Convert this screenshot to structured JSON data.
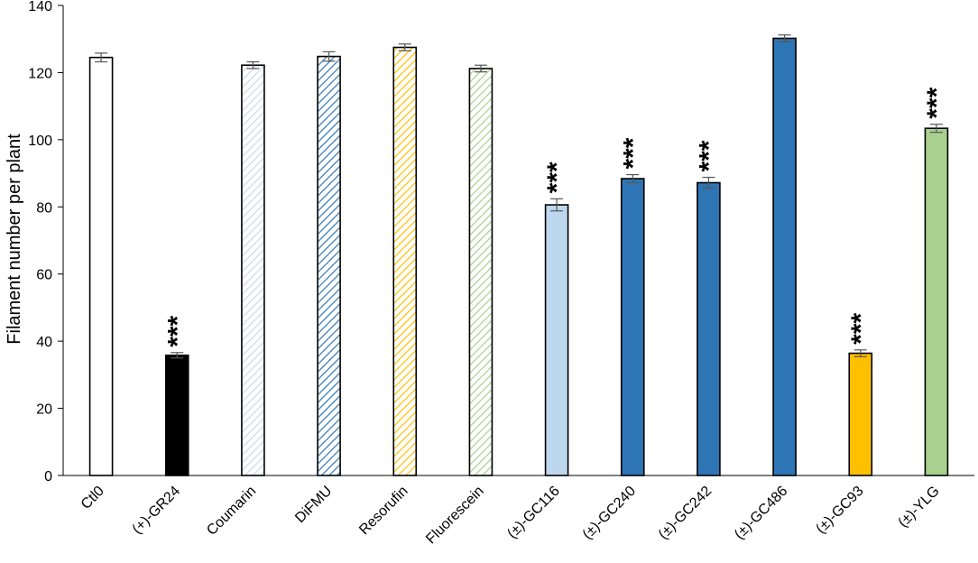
{
  "chart_data": {
    "type": "bar",
    "title": "",
    "xlabel": "",
    "ylabel": "Filament number per plant",
    "ylim": [
      0,
      140
    ],
    "yticks": [
      0,
      20,
      40,
      60,
      80,
      100,
      120,
      140
    ],
    "y_tick_labels": [
      "0",
      "20",
      "40",
      "60",
      "80",
      "100",
      "120",
      "140"
    ],
    "grid": false,
    "legend": "none",
    "categories": [
      "Ctl0",
      "(+)-GR24",
      "Coumarin",
      "DiFMU",
      "Resorufin",
      "Fluorescein",
      "(±)-GC116",
      "(±)-GC240",
      "(±)-GC242",
      "(±)-GC486",
      "(±)-GC93",
      "(±)-YLG"
    ],
    "values": [
      124.5,
      35.8,
      122.2,
      124.8,
      127.5,
      121.2,
      80.6,
      88.4,
      87.2,
      130.2,
      36.4,
      103.4
    ],
    "errors": [
      1.3,
      0.8,
      1.0,
      1.4,
      1.0,
      1.0,
      1.8,
      1.2,
      1.6,
      1.0,
      1.0,
      1.2
    ],
    "significance": [
      "",
      "***",
      "",
      "",
      "",
      "",
      "***",
      "***",
      "***",
      "",
      "***",
      "***"
    ],
    "bar_styles": [
      {
        "fill": "solid",
        "color": "#ffffff"
      },
      {
        "fill": "solid",
        "color": "#000000"
      },
      {
        "fill": "hatch",
        "color": "#c9d9ec"
      },
      {
        "fill": "hatch",
        "color": "#2e75b6"
      },
      {
        "fill": "hatch",
        "color": "#ffc000"
      },
      {
        "fill": "hatch",
        "color": "#a9d08e"
      },
      {
        "fill": "solid",
        "color": "#bdd7ee"
      },
      {
        "fill": "solid",
        "color": "#2e75b6"
      },
      {
        "fill": "solid",
        "color": "#2e75b6"
      },
      {
        "fill": "solid",
        "color": "#2e75b6"
      },
      {
        "fill": "solid",
        "color": "#ffc000"
      },
      {
        "fill": "solid",
        "color": "#a9d08e"
      }
    ]
  }
}
